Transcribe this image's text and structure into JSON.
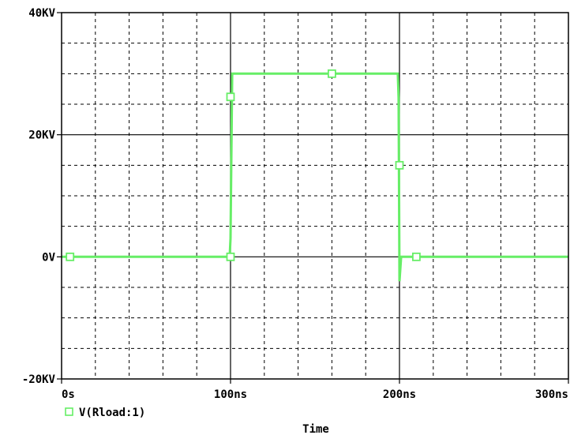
{
  "chart_data": {
    "type": "line",
    "xlabel": "Time",
    "ylabel": "",
    "xlim": [
      0,
      300
    ],
    "ylim": [
      -20,
      40
    ],
    "x_unit": "ns",
    "y_unit": "KV",
    "x_ticks": [
      0,
      100,
      200,
      300
    ],
    "x_tick_labels": [
      "0s",
      "100ns",
      "200ns",
      "300ns"
    ],
    "y_ticks": [
      -20,
      0,
      20,
      40
    ],
    "y_tick_labels": [
      "-20KV",
      "0V",
      "20KV",
      "40KV"
    ],
    "x_minor_ticks": [
      20,
      40,
      60,
      80,
      120,
      140,
      160,
      180,
      220,
      240,
      260,
      280
    ],
    "y_minor_ticks": [
      -15,
      -10,
      -5,
      5,
      10,
      15,
      25,
      30,
      35
    ],
    "grid": true,
    "legend_position": "bottom-left",
    "series": [
      {
        "name": "V(Rload:1)",
        "color": "#66ee66",
        "marker": "square",
        "x": [
          0,
          99.5,
          100,
          101,
          150,
          199,
          199.5,
          200,
          201,
          300
        ],
        "y": [
          0,
          0,
          3,
          30,
          30,
          30,
          26,
          -4,
          0,
          0
        ],
        "marker_points": [
          [
            5,
            0
          ],
          [
            100,
            0
          ],
          [
            100,
            26.2
          ],
          [
            160,
            30
          ],
          [
            200,
            15
          ],
          [
            210,
            0
          ]
        ]
      }
    ]
  }
}
